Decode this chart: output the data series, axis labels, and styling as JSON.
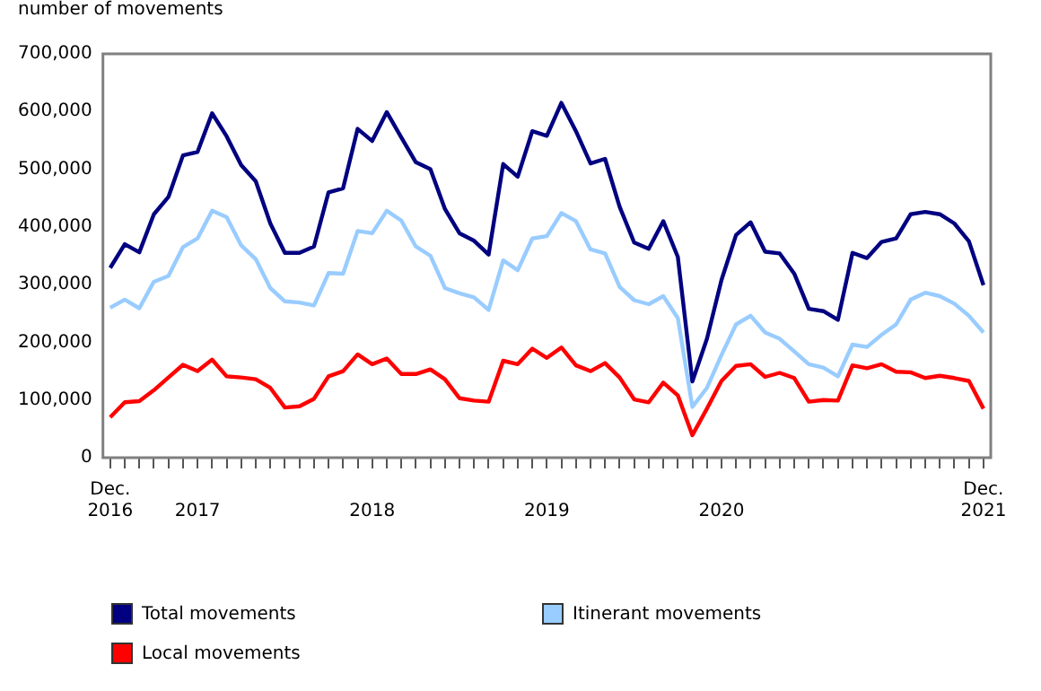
{
  "chart_data": {
    "type": "line",
    "ylabel": "number of movements",
    "categories": [
      "Dec. 2016",
      null,
      null,
      null,
      null,
      null,
      "2017",
      null,
      null,
      null,
      null,
      null,
      null,
      null,
      null,
      null,
      null,
      null,
      "2018",
      null,
      null,
      null,
      null,
      null,
      null,
      null,
      null,
      null,
      null,
      null,
      "2019",
      null,
      null,
      null,
      null,
      null,
      null,
      null,
      null,
      null,
      null,
      null,
      "2020",
      null,
      null,
      null,
      null,
      null,
      null,
      null,
      null,
      null,
      null,
      null,
      null,
      null,
      null,
      null,
      null,
      null,
      "Dec. 2021"
    ],
    "ylim": [
      0,
      700000
    ],
    "yticks": [
      0,
      {
        "value": 100000,
        "label": "100,000"
      },
      {
        "value": 200000,
        "label": "200,000"
      },
      {
        "value": 300000,
        "label": "300,000"
      },
      {
        "value": 400000,
        "label": "400,000"
      },
      {
        "value": 500000,
        "label": "500,000"
      },
      {
        "value": 600000,
        "label": "600,000"
      },
      {
        "value": 700000,
        "label": "700,000"
      }
    ],
    "legend": "bottom",
    "marker": "none",
    "series": [
      {
        "name": "Total movements",
        "color": "#000080",
        "values": [
          329000,
          370000,
          356000,
          422000,
          452000,
          524000,
          530000,
          597000,
          557000,
          507000,
          479000,
          406000,
          355000,
          355000,
          366000,
          460000,
          467000,
          570000,
          549000,
          599000,
          555000,
          512000,
          500000,
          431000,
          389000,
          376000,
          352000,
          509000,
          487000,
          566000,
          558000,
          615000,
          566000,
          510000,
          518000,
          435000,
          373000,
          362000,
          410000,
          348000,
          132000,
          206000,
          308000,
          386000,
          408000,
          357000,
          354000,
          319000,
          258000,
          254000,
          239000,
          355000,
          346000,
          374000,
          380000,
          422000,
          426000,
          422000,
          406000,
          375000,
          299000
        ]
      },
      {
        "name": "Itinerant movements",
        "color": "#99ccff",
        "values": [
          260000,
          274000,
          259000,
          305000,
          315000,
          365000,
          380000,
          428000,
          417000,
          368000,
          344000,
          294000,
          271000,
          269000,
          264000,
          320000,
          319000,
          393000,
          389000,
          428000,
          411000,
          366000,
          350000,
          294000,
          285000,
          278000,
          256000,
          342000,
          325000,
          380000,
          384000,
          424000,
          410000,
          361000,
          354000,
          296000,
          273000,
          266000,
          280000,
          242000,
          88000,
          121000,
          178000,
          231000,
          246000,
          217000,
          206000,
          184000,
          162000,
          156000,
          141000,
          196000,
          192000,
          213000,
          231000,
          274000,
          286000,
          280000,
          267000,
          246000,
          217000
        ]
      },
      {
        "name": "Local movements",
        "color": "#ff0000",
        "values": [
          70000,
          96000,
          98000,
          117000,
          139000,
          161000,
          150000,
          170000,
          141000,
          139000,
          136000,
          121000,
          87000,
          89000,
          102000,
          141000,
          150000,
          179000,
          162000,
          172000,
          145000,
          145000,
          153000,
          136000,
          103000,
          99000,
          97000,
          168000,
          162000,
          189000,
          173000,
          191000,
          160000,
          150000,
          164000,
          139000,
          101000,
          96000,
          130000,
          108000,
          39000,
          85000,
          133000,
          159000,
          162000,
          140000,
          147000,
          138000,
          97000,
          100000,
          99000,
          160000,
          155000,
          162000,
          149000,
          148000,
          138000,
          142000,
          138000,
          133000,
          85000
        ]
      }
    ]
  }
}
